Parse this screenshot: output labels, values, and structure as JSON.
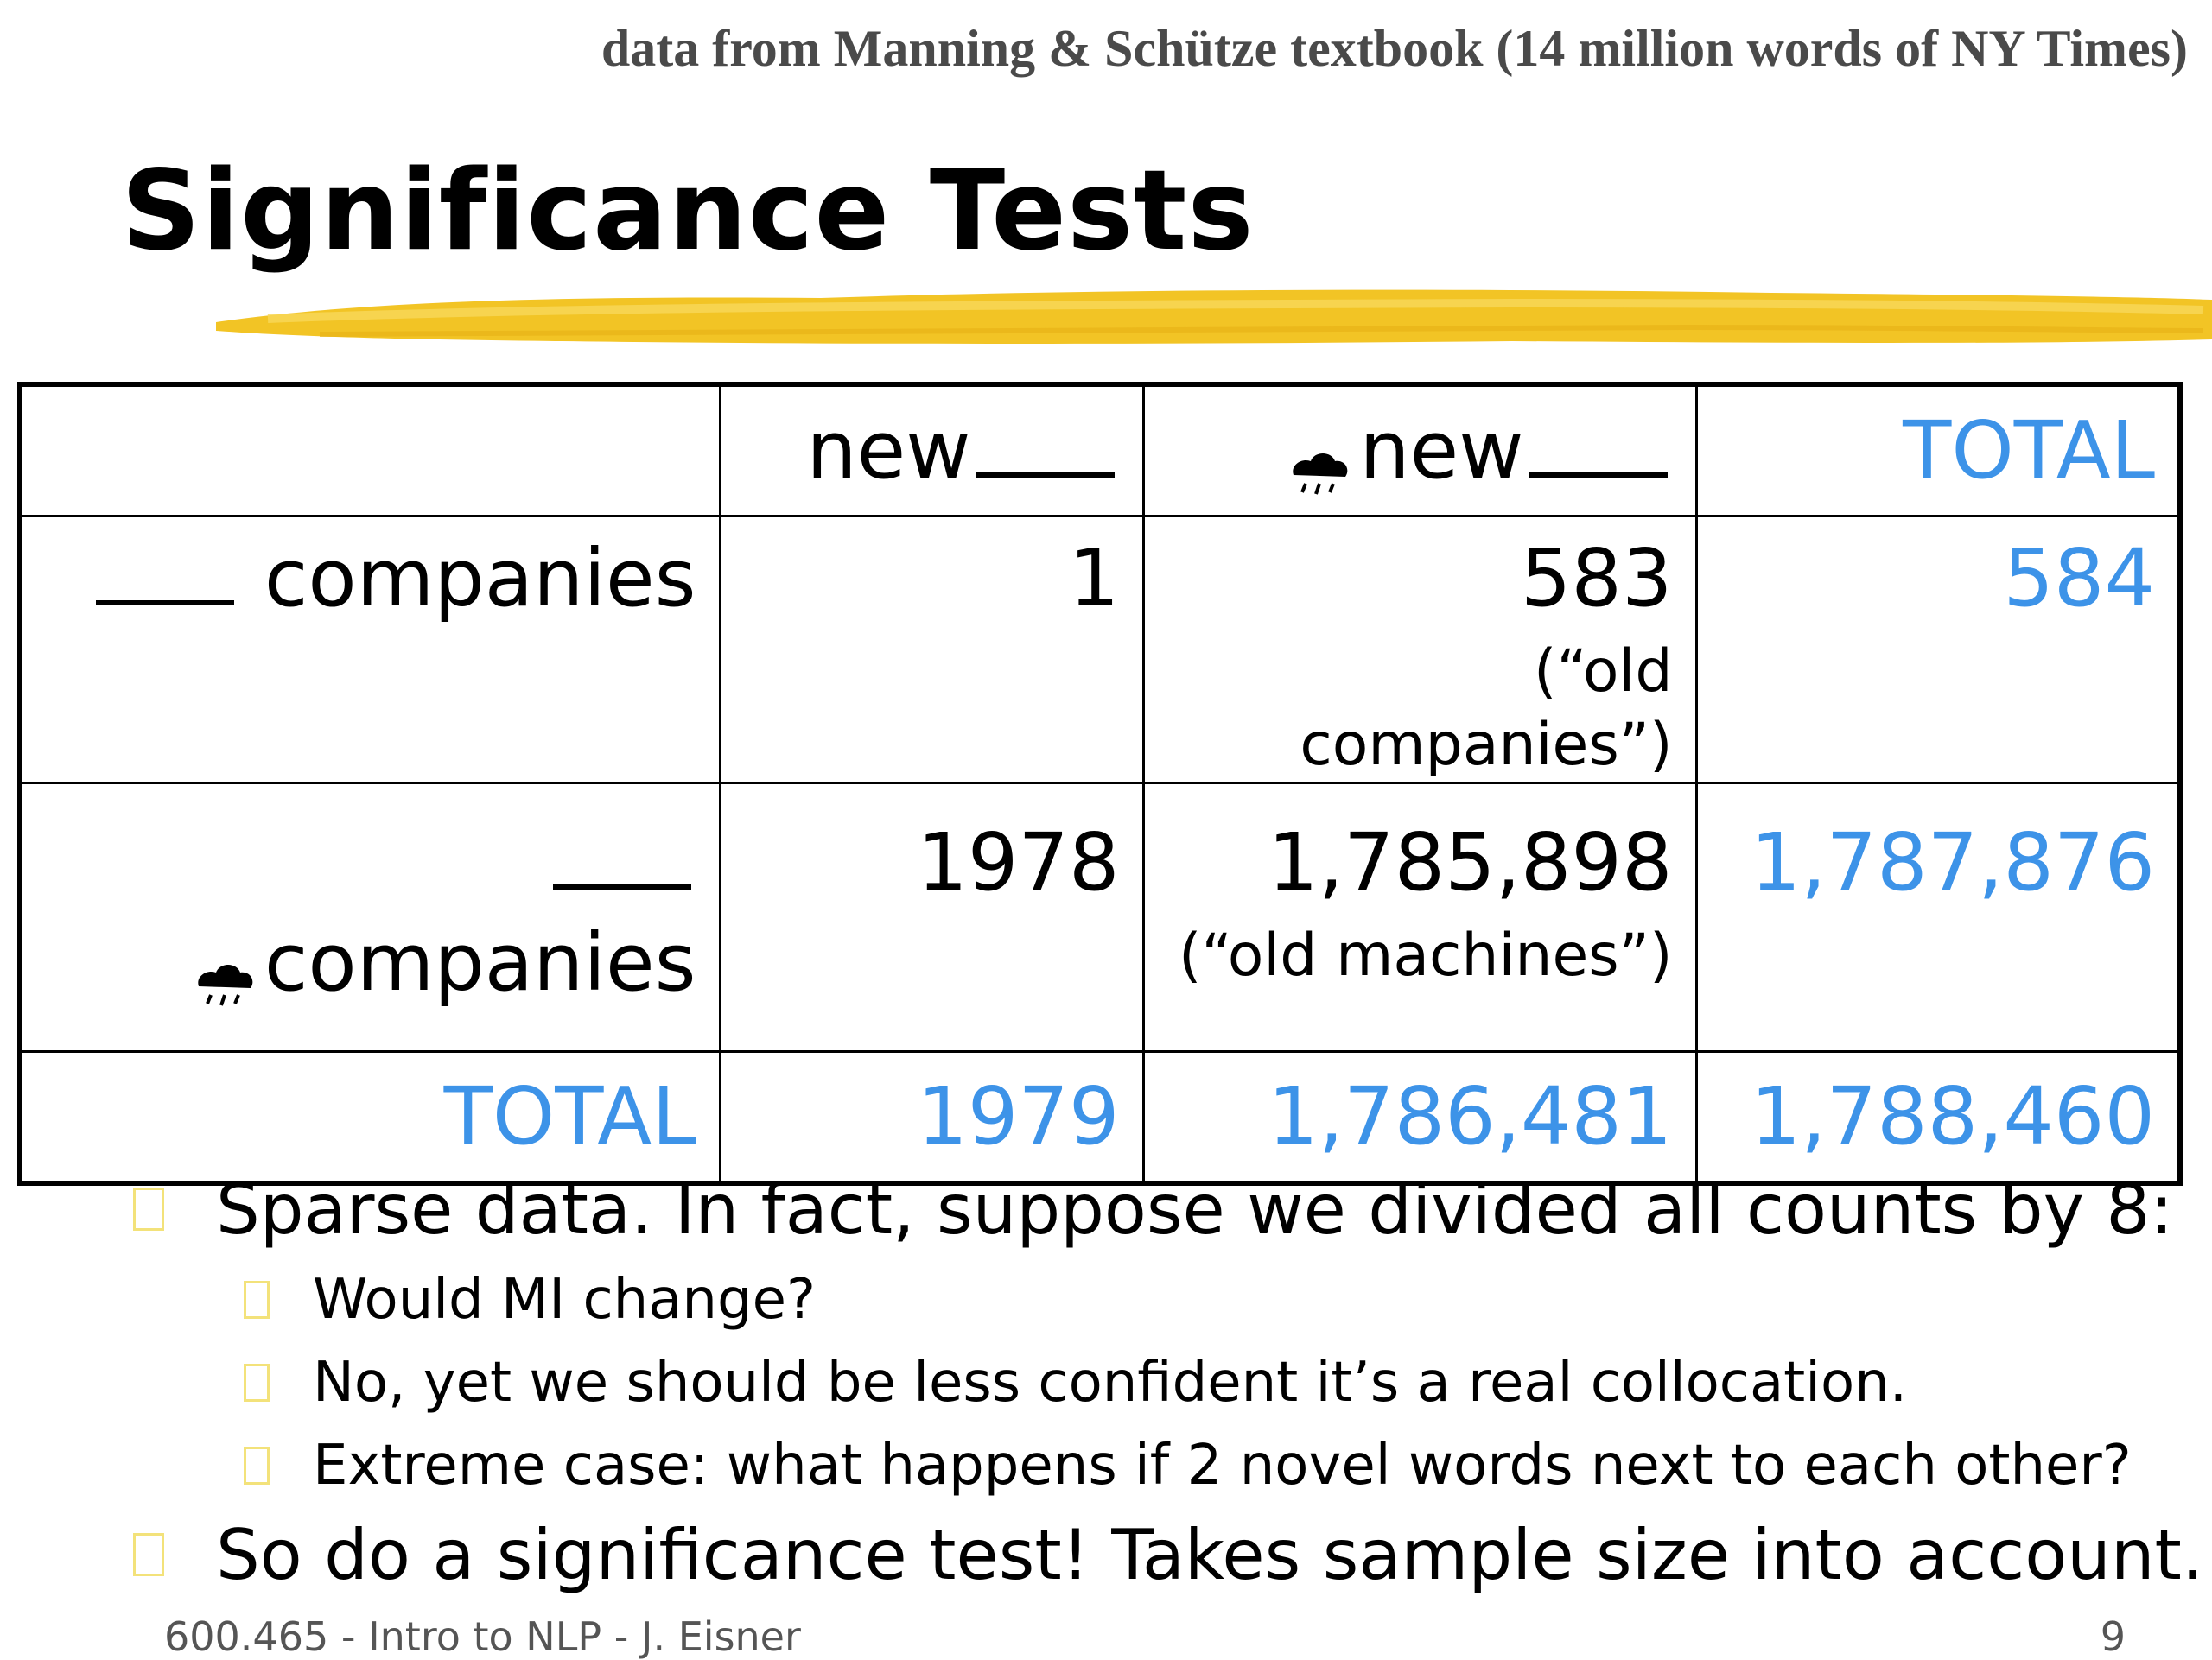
{
  "source_note": "data from Manning & Schütze textbook (14 million words of NY Times)",
  "title": "Significance Tests",
  "table": {
    "header": {
      "col1": "new",
      "col2": "new",
      "col3": "TOTAL"
    },
    "row1": {
      "label": "companies",
      "c1": "1",
      "c2": "583",
      "c2_note": "(“old companies”)",
      "total": "584"
    },
    "row2": {
      "label": "companies",
      "c1": "1978",
      "c2": "1,785,898",
      "c2_note": "(“old machines”)",
      "total": "1,787,876"
    },
    "totals": {
      "label": "TOTAL",
      "c1": "1979",
      "c2": "1,786,481",
      "total": "1,788,460"
    }
  },
  "bullets": [
    {
      "level": 1,
      "text": "Sparse data.  In fact, suppose we divided all counts by 8:"
    },
    {
      "level": 2,
      "text": "Would MI change?"
    },
    {
      "level": 2,
      "text": "No, yet we should be less confident it’s a real collocation."
    },
    {
      "level": 2,
      "text": "Extreme case: what happens if 2 novel words next to each other?"
    },
    {
      "level": 1,
      "text": "So do a significance test!  Takes sample size into account."
    }
  ],
  "footer": {
    "course": "600.465 - Intro to NLP - J. Eisner",
    "page": "9"
  },
  "colors": {
    "total_blue": "#3d93e8",
    "brush_yellow": "#f2c425",
    "bullet_box": "#f3e27a"
  },
  "icons": {
    "negation_symbol": "rain-cloud-icon"
  }
}
